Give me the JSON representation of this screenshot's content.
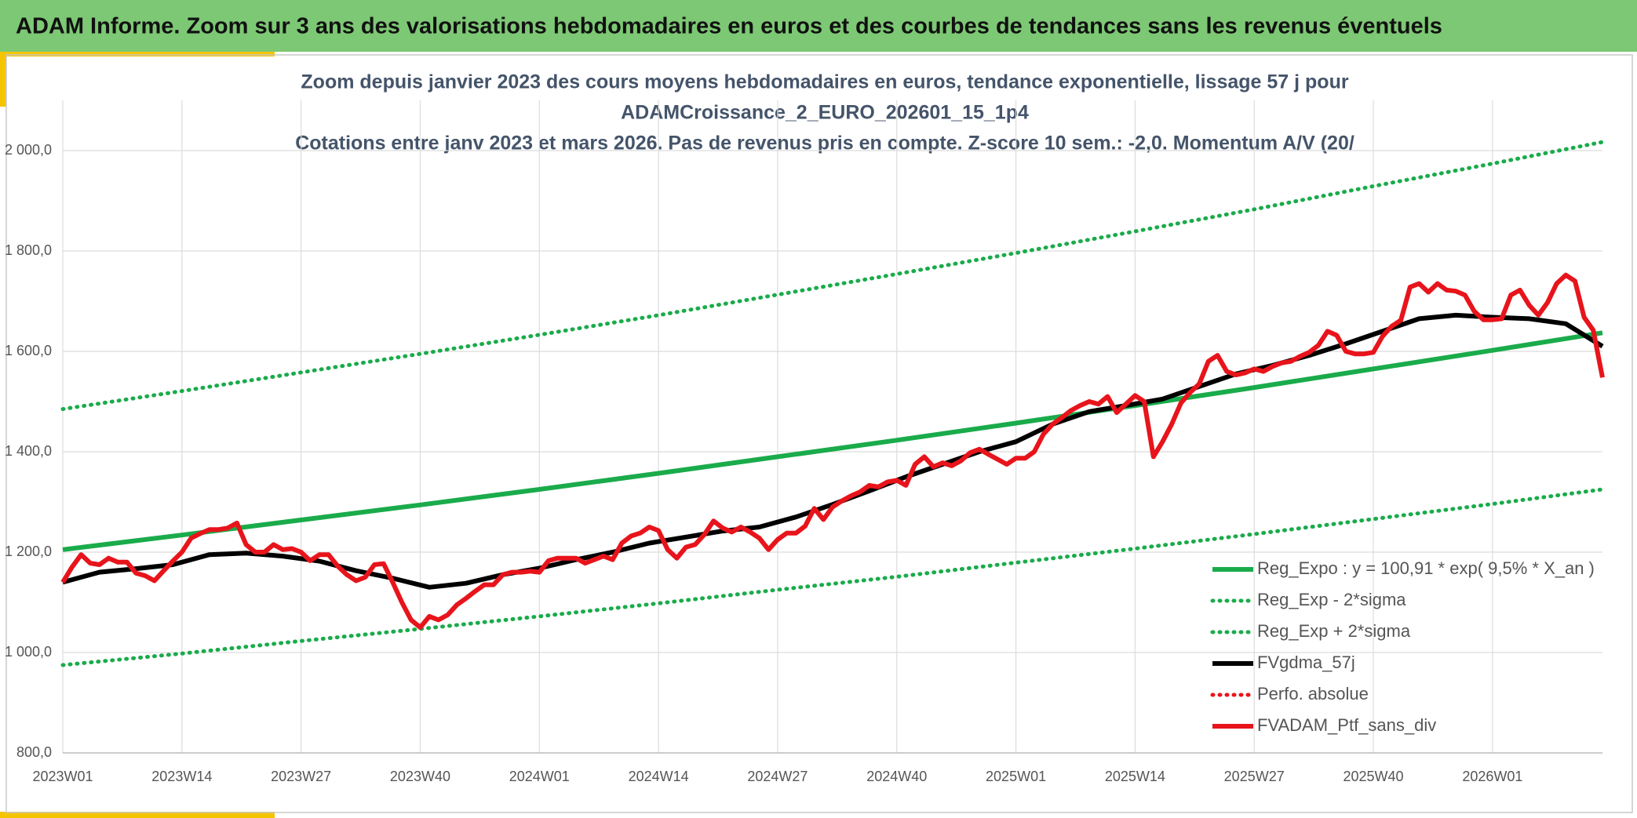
{
  "header": {
    "title": "ADAM Informe. Zoom sur 3 ans des valorisations hebdomadaires en euros et des courbes de tendances sans les revenus éventuels"
  },
  "chart_data": {
    "type": "line",
    "title": [
      "Zoom depuis janvier 2023 des cours moyens hebdomadaires en euros, tendance exponentielle, lissage 57 j pour",
      "ADAMCroissance_2_EURO_202601_15_1p4",
      "Cotations entre janv 2023 et mars 2026. Pas de revenus pris en compte. Z-score 10 sem.: -2,0. Momentum A/V (20/"
    ],
    "xlim": [
      0,
      168
    ],
    "xticks": [
      {
        "value": 0,
        "label": "2023W01"
      },
      {
        "value": 13,
        "label": "2023W14"
      },
      {
        "value": 26,
        "label": "2023W27"
      },
      {
        "value": 39,
        "label": "2023W40"
      },
      {
        "value": 52,
        "label": "2024W01"
      },
      {
        "value": 65,
        "label": "2024W14"
      },
      {
        "value": 78,
        "label": "2024W27"
      },
      {
        "value": 91,
        "label": "2024W40"
      },
      {
        "value": 104,
        "label": "2025W01"
      },
      {
        "value": 117,
        "label": "2025W14"
      },
      {
        "value": 130,
        "label": "2025W27"
      },
      {
        "value": 143,
        "label": "2025W40"
      },
      {
        "value": 156,
        "label": "2026W01"
      }
    ],
    "ylim": [
      800,
      2100
    ],
    "yticks": [
      {
        "value": 800,
        "label": "800,0"
      },
      {
        "value": 1000,
        "label": "1 000,0"
      },
      {
        "value": 1200,
        "label": "1 200,0"
      },
      {
        "value": 1400,
        "label": "1 400,0"
      },
      {
        "value": 1600,
        "label": "1 600,0"
      },
      {
        "value": 1800,
        "label": "1 800,0"
      },
      {
        "value": 2000,
        "label": "2 000,0"
      }
    ],
    "grid": true,
    "series": [
      {
        "name": "Reg_Expo : y = 100,91 * exp( 9,5% *  X_an )",
        "color": "#1aab4b",
        "dash": "solid",
        "x": [
          0,
          13,
          26,
          39,
          52,
          65,
          78,
          91,
          104,
          117,
          130,
          143,
          156,
          168
        ],
        "values": [
          1205,
          1234,
          1264,
          1294,
          1325,
          1357,
          1390,
          1423,
          1457,
          1492,
          1528,
          1565,
          1602,
          1637
        ]
      },
      {
        "name": "Reg_Exp - 2*sigma",
        "color": "#1aab4b",
        "dash": "dotted",
        "x": [
          0,
          13,
          26,
          39,
          52,
          65,
          78,
          91,
          104,
          117,
          130,
          143,
          156,
          168
        ],
        "values": [
          975,
          998,
          1023,
          1047,
          1072,
          1098,
          1125,
          1151,
          1179,
          1207,
          1236,
          1266,
          1296,
          1325
        ]
      },
      {
        "name": "Reg_Exp + 2*sigma",
        "color": "#1aab4b",
        "dash": "dotted",
        "x": [
          0,
          13,
          26,
          39,
          52,
          65,
          78,
          91,
          104,
          117,
          130,
          143,
          156,
          168
        ],
        "values": [
          1485,
          1521,
          1558,
          1595,
          1633,
          1672,
          1713,
          1754,
          1796,
          1839,
          1883,
          1929,
          1974,
          2017
        ]
      },
      {
        "name": "FVgdma_57j",
        "color": "#000000",
        "dash": "solid",
        "x": [
          0,
          4,
          8,
          12,
          16,
          20,
          24,
          28,
          32,
          36,
          40,
          44,
          48,
          52,
          56,
          60,
          64,
          68,
          72,
          76,
          80,
          84,
          88,
          92,
          96,
          100,
          104,
          108,
          112,
          116,
          120,
          124,
          128,
          132,
          136,
          140,
          144,
          148,
          152,
          156,
          160,
          164,
          168
        ],
        "values": [
          1140,
          1160,
          1167,
          1175,
          1195,
          1198,
          1192,
          1182,
          1163,
          1148,
          1130,
          1138,
          1155,
          1168,
          1185,
          1200,
          1218,
          1230,
          1242,
          1250,
          1270,
          1295,
          1322,
          1350,
          1375,
          1400,
          1420,
          1455,
          1480,
          1492,
          1505,
          1530,
          1555,
          1572,
          1592,
          1615,
          1640,
          1665,
          1672,
          1668,
          1665,
          1655,
          1610
        ]
      },
      {
        "name": "Perfo. absolue",
        "color": "#e8141b",
        "dash": "dotted",
        "x": [],
        "values": []
      },
      {
        "name": "FVADAM_Ptf_sans_div",
        "color": "#e8141b",
        "dash": "solid",
        "x": [
          0,
          1,
          2,
          3,
          4,
          5,
          6,
          7,
          8,
          9,
          10,
          11,
          12,
          13,
          14,
          15,
          16,
          17,
          18,
          19,
          20,
          21,
          22,
          23,
          24,
          25,
          26,
          27,
          28,
          29,
          30,
          31,
          32,
          33,
          34,
          35,
          36,
          37,
          38,
          39,
          40,
          41,
          42,
          43,
          44,
          45,
          46,
          47,
          48,
          49,
          50,
          51,
          52,
          53,
          54,
          55,
          56,
          57,
          58,
          59,
          60,
          61,
          62,
          63,
          64,
          65,
          66,
          67,
          68,
          69,
          70,
          71,
          72,
          73,
          74,
          75,
          76,
          77,
          78,
          79,
          80,
          81,
          82,
          83,
          84,
          85,
          86,
          87,
          88,
          89,
          90,
          91,
          92,
          93,
          94,
          95,
          96,
          97,
          98,
          99,
          100,
          101,
          102,
          103,
          104,
          105,
          106,
          107,
          108,
          109,
          110,
          111,
          112,
          113,
          114,
          115,
          116,
          117,
          118,
          119,
          120,
          121,
          122,
          123,
          124,
          125,
          126,
          127,
          128,
          129,
          130,
          131,
          132,
          133,
          134,
          135,
          136,
          137,
          138,
          139,
          140,
          141,
          142,
          143,
          144,
          145,
          146,
          147,
          148,
          149,
          150,
          151,
          152,
          153,
          154,
          155,
          156,
          157,
          158,
          159,
          160,
          161,
          162,
          163,
          164,
          165,
          166,
          167,
          168
        ],
        "values": [
          1140,
          1170,
          1195,
          1178,
          1175,
          1188,
          1180,
          1180,
          1158,
          1153,
          1143,
          1163,
          1182,
          1200,
          1228,
          1237,
          1245,
          1245,
          1248,
          1258,
          1215,
          1200,
          1200,
          1215,
          1205,
          1207,
          1200,
          1183,
          1195,
          1195,
          1172,
          1155,
          1143,
          1150,
          1175,
          1177,
          1140,
          1100,
          1065,
          1050,
          1072,
          1065,
          1075,
          1095,
          1108,
          1122,
          1135,
          1135,
          1155,
          1160,
          1160,
          1162,
          1160,
          1183,
          1188,
          1188,
          1188,
          1178,
          1185,
          1192,
          1185,
          1218,
          1232,
          1238,
          1250,
          1243,
          1205,
          1188,
          1210,
          1215,
          1235,
          1262,
          1248,
          1240,
          1250,
          1240,
          1228,
          1205,
          1225,
          1238,
          1238,
          1252,
          1287,
          1265,
          1290,
          1302,
          1312,
          1320,
          1333,
          1330,
          1340,
          1343,
          1333,
          1375,
          1390,
          1370,
          1378,
          1372,
          1382,
          1398,
          1405,
          1395,
          1385,
          1375,
          1387,
          1387,
          1400,
          1435,
          1455,
          1468,
          1482,
          1492,
          1500,
          1495,
          1510,
          1478,
          1495,
          1512,
          1500,
          1390,
          1420,
          1455,
          1497,
          1518,
          1535,
          1580,
          1592,
          1560,
          1553,
          1557,
          1565,
          1560,
          1570,
          1577,
          1580,
          1590,
          1598,
          1612,
          1640,
          1632,
          1600,
          1595,
          1595,
          1598,
          1630,
          1650,
          1662,
          1728,
          1735,
          1718,
          1735,
          1722,
          1720,
          1712,
          1680,
          1663,
          1663,
          1665,
          1712,
          1722,
          1692,
          1672,
          1697,
          1735,
          1752,
          1740,
          1668,
          1642,
          1548
        ]
      }
    ]
  }
}
